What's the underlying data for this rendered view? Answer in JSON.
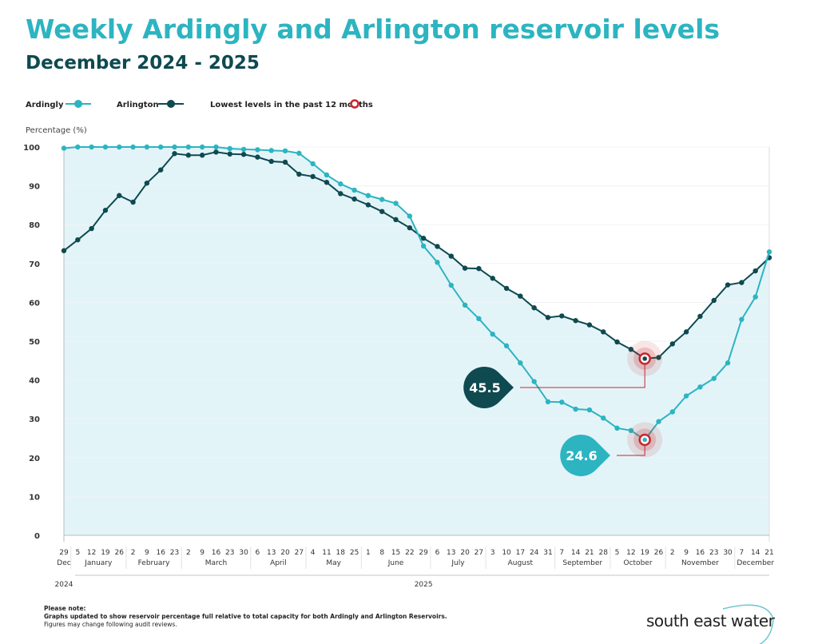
{
  "chart_data": {
    "type": "line",
    "title": "Weekly Ardingly and Arlington reservoir levels",
    "subtitle": "December 2024 - 2025",
    "ylabel": "Percentage (%)",
    "ylim": [
      0,
      100
    ],
    "yticks": [
      0,
      10,
      20,
      30,
      40,
      50,
      60,
      70,
      80,
      90,
      100
    ],
    "grid": true,
    "legend_placement": "top-left",
    "legend": {
      "ardingly": "Ardingly",
      "arlington": "Arlington",
      "lowest": "Lowest levels in the past 12 months"
    },
    "x_day_labels": [
      "29",
      "5",
      "12",
      "19",
      "26",
      "2",
      "9",
      "16",
      "23",
      "2",
      "9",
      "16",
      "23",
      "30",
      "6",
      "13",
      "20",
      "27",
      "4",
      "11",
      "18",
      "25",
      "1",
      "8",
      "15",
      "22",
      "29",
      "6",
      "13",
      "20",
      "27",
      "3",
      "10",
      "17",
      "24",
      "31",
      "7",
      "14",
      "21",
      "28",
      "5",
      "12",
      "19",
      "26",
      "2",
      "9",
      "16",
      "23",
      "30",
      "7",
      "14",
      "21"
    ],
    "months": [
      {
        "label": "Dec",
        "weeks": 1
      },
      {
        "label": "January",
        "weeks": 4
      },
      {
        "label": "February",
        "weeks": 4
      },
      {
        "label": "March",
        "weeks": 5
      },
      {
        "label": "April",
        "weeks": 4
      },
      {
        "label": "May",
        "weeks": 4
      },
      {
        "label": "June",
        "weeks": 5
      },
      {
        "label": "July",
        "weeks": 4
      },
      {
        "label": "August",
        "weeks": 5
      },
      {
        "label": "September",
        "weeks": 4
      },
      {
        "label": "October",
        "weeks": 4
      },
      {
        "label": "November",
        "weeks": 5
      },
      {
        "label": "December",
        "weeks": 3
      }
    ],
    "years": [
      {
        "label": "2024",
        "start_week": 0
      },
      {
        "label": "2025",
        "start_week": 26
      }
    ],
    "series": [
      {
        "name": "Ardingly",
        "color": "#2cb4c1",
        "values": [
          99.7,
          100,
          100,
          100,
          100,
          100,
          100,
          100,
          100,
          100,
          100,
          100,
          99.6,
          99.4,
          99.3,
          99.1,
          99.0,
          98.4,
          95.7,
          92.8,
          90.5,
          88.9,
          87.5,
          86.5,
          85.5,
          82.2,
          74.5,
          70.3,
          64.4,
          59.3,
          55.8,
          51.8,
          48.8,
          44.4,
          39.6,
          34.4,
          34.3,
          32.5,
          32.3,
          30.2,
          27.6,
          27.0,
          24.6,
          29.3,
          31.8,
          35.9,
          38.2,
          40.4,
          44.4,
          55.6,
          61.4,
          73.0
        ]
      },
      {
        "name": "Arlington",
        "color": "#0e4a4f",
        "values": [
          73.3,
          76.1,
          79.0,
          83.7,
          87.5,
          85.8,
          90.7,
          94.1,
          98.3,
          97.9,
          97.9,
          98.7,
          98.2,
          98.1,
          97.4,
          96.3,
          96.1,
          93.0,
          92.4,
          90.9,
          88.0,
          86.6,
          85.1,
          83.4,
          81.3,
          79.2,
          76.5,
          74.4,
          71.9,
          68.8,
          68.7,
          66.2,
          63.6,
          61.6,
          58.6,
          56.1,
          56.5,
          55.3,
          54.2,
          52.4,
          49.8,
          47.9,
          45.5,
          45.8,
          49.3,
          52.4,
          56.4,
          60.5,
          64.5,
          65.1,
          68.1,
          71.5
        ]
      }
    ],
    "annotations": [
      {
        "series": "Arlington",
        "week_label": "19 October",
        "value": "45.5"
      },
      {
        "series": "Ardingly",
        "week_label": "19 October",
        "value": "24.6"
      }
    ],
    "colors": {
      "lowest_marker": "#c8262c",
      "fill": "#e3f4f9",
      "title": "#2cb4c1",
      "subtitle": "#0e4a4f"
    }
  },
  "footer": {
    "note_title": "Please note:",
    "note_line1": "Graphs updated to show reservoir percentage full relative to total capacity for both Ardingly and Arlington Reservoirs.",
    "note_line2": "Figures may change following audit reviews.",
    "brand": "south east water"
  }
}
